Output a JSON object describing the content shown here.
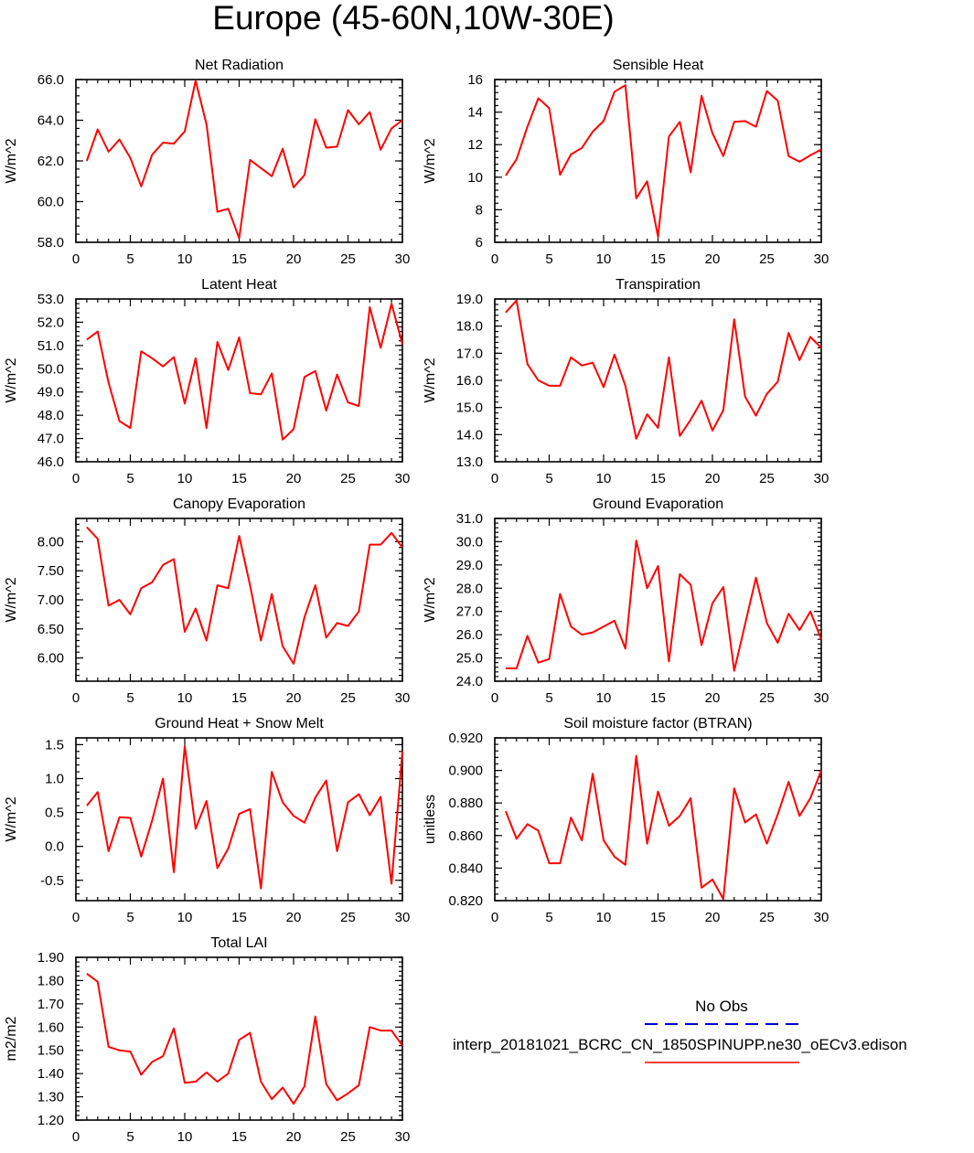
{
  "figure_title": "Europe (45-60N,10W-30E)",
  "legend": {
    "obs_label": "No Obs",
    "obs_color": "#0000cc",
    "model_label": "interp_20181021_BCRC_CN_1850SPINUPP.ne30_oECv3.edison",
    "model_color": "#ff0000"
  },
  "colors": {
    "series": "#ff0000",
    "axis": "#000000"
  },
  "chart_data": [
    {
      "type": "line",
      "title": "Net Radiation",
      "ylabel": "W/m^2",
      "xlim": [
        0,
        30
      ],
      "ylim": [
        58,
        66
      ],
      "xticks": [
        0,
        5,
        10,
        15,
        20,
        25,
        30
      ],
      "yticks": [
        "58.0",
        "60.0",
        "62.0",
        "64.0",
        "66.0"
      ],
      "x": [
        1,
        2,
        3,
        4,
        5,
        6,
        7,
        8,
        9,
        10,
        11,
        12,
        13,
        14,
        15,
        16,
        17,
        18,
        19,
        20,
        21,
        22,
        23,
        24,
        25,
        26,
        27,
        28,
        29,
        30
      ],
      "values": [
        62.0,
        63.55,
        62.45,
        63.05,
        62.15,
        60.75,
        62.3,
        62.9,
        62.85,
        63.45,
        65.95,
        63.8,
        59.5,
        59.65,
        58.2,
        62.05,
        61.65,
        61.25,
        62.6,
        60.7,
        61.3,
        64.05,
        62.65,
        62.7,
        64.5,
        63.8,
        64.4,
        62.55,
        63.6,
        64.0
      ]
    },
    {
      "type": "line",
      "title": "Sensible Heat",
      "ylabel": "W/m^2",
      "xlim": [
        0,
        30
      ],
      "ylim": [
        6,
        16
      ],
      "xticks": [
        0,
        5,
        10,
        15,
        20,
        25,
        30
      ],
      "yticks": [
        "6",
        "8",
        "10",
        "12",
        "14",
        "16"
      ],
      "x": [
        1,
        2,
        3,
        4,
        5,
        6,
        7,
        8,
        9,
        10,
        11,
        12,
        13,
        14,
        15,
        16,
        17,
        18,
        19,
        20,
        21,
        22,
        23,
        24,
        25,
        26,
        27,
        28,
        29,
        30
      ],
      "values": [
        10.1,
        11.1,
        13.1,
        14.85,
        14.25,
        10.15,
        11.4,
        11.8,
        12.8,
        13.45,
        15.25,
        15.65,
        8.7,
        9.75,
        6.35,
        12.5,
        13.4,
        10.3,
        15.0,
        12.7,
        11.3,
        13.4,
        13.45,
        13.1,
        15.3,
        14.7,
        11.3,
        10.95,
        11.35,
        11.7
      ]
    },
    {
      "type": "line",
      "title": "Latent Heat",
      "ylabel": "W/m^2",
      "xlim": [
        0,
        30
      ],
      "ylim": [
        46,
        53
      ],
      "xticks": [
        0,
        5,
        10,
        15,
        20,
        25,
        30
      ],
      "yticks": [
        "46.0",
        "47.0",
        "48.0",
        "49.0",
        "50.0",
        "51.0",
        "52.0",
        "53.0"
      ],
      "x": [
        1,
        2,
        3,
        4,
        5,
        6,
        7,
        8,
        9,
        10,
        11,
        12,
        13,
        14,
        15,
        16,
        17,
        18,
        19,
        20,
        21,
        22,
        23,
        24,
        25,
        26,
        27,
        28,
        29,
        30
      ],
      "values": [
        51.25,
        51.6,
        49.4,
        47.75,
        47.45,
        50.75,
        50.45,
        50.1,
        50.5,
        48.5,
        50.45,
        47.45,
        51.15,
        49.95,
        51.35,
        48.95,
        48.9,
        49.8,
        46.95,
        47.4,
        49.65,
        49.9,
        48.2,
        49.75,
        48.55,
        48.4,
        52.65,
        50.9,
        52.8,
        51.05
      ]
    },
    {
      "type": "line",
      "title": "Transpiration",
      "ylabel": "W/m^2",
      "xlim": [
        0,
        30
      ],
      "ylim": [
        13,
        19
      ],
      "xticks": [
        0,
        5,
        10,
        15,
        20,
        25,
        30
      ],
      "yticks": [
        "13.0",
        "14.0",
        "15.0",
        "16.0",
        "17.0",
        "18.0",
        "19.0"
      ],
      "x": [
        1,
        2,
        3,
        4,
        5,
        6,
        7,
        8,
        9,
        10,
        11,
        12,
        13,
        14,
        15,
        16,
        17,
        18,
        19,
        20,
        21,
        22,
        23,
        24,
        25,
        26,
        27,
        28,
        29,
        30
      ],
      "values": [
        18.5,
        18.95,
        16.6,
        16.0,
        15.8,
        15.8,
        16.85,
        16.55,
        16.65,
        15.75,
        16.95,
        15.8,
        13.85,
        14.75,
        14.25,
        16.85,
        13.95,
        14.55,
        15.25,
        14.15,
        14.9,
        18.25,
        15.4,
        14.7,
        15.5,
        15.95,
        17.75,
        16.75,
        17.6,
        17.2
      ]
    },
    {
      "type": "line",
      "title": "Canopy Evaporation",
      "ylabel": "W/m^2",
      "xlim": [
        0,
        30
      ],
      "ylim": [
        5.6,
        8.4
      ],
      "xticks": [
        0,
        5,
        10,
        15,
        20,
        25,
        30
      ],
      "yticks": [
        "6.00",
        "6.50",
        "7.00",
        "7.50",
        "8.00"
      ],
      "x": [
        1,
        2,
        3,
        4,
        5,
        6,
        7,
        8,
        9,
        10,
        11,
        12,
        13,
        14,
        15,
        16,
        17,
        18,
        19,
        20,
        21,
        22,
        23,
        24,
        25,
        26,
        27,
        28,
        29,
        30
      ],
      "values": [
        8.25,
        8.05,
        6.9,
        7.0,
        6.75,
        7.2,
        7.3,
        7.6,
        7.7,
        6.45,
        6.85,
        6.3,
        7.25,
        7.2,
        8.1,
        7.25,
        6.3,
        7.1,
        6.2,
        5.9,
        6.7,
        7.25,
        6.35,
        6.6,
        6.55,
        6.8,
        7.95,
        7.95,
        8.15,
        7.9
      ]
    },
    {
      "type": "line",
      "title": "Ground Evaporation",
      "ylabel": "W/m^2",
      "xlim": [
        0,
        30
      ],
      "ylim": [
        24,
        31
      ],
      "xticks": [
        0,
        5,
        10,
        15,
        20,
        25,
        30
      ],
      "yticks": [
        "24.0",
        "25.0",
        "26.0",
        "27.0",
        "28.0",
        "29.0",
        "30.0",
        "31.0"
      ],
      "x": [
        1,
        2,
        3,
        4,
        5,
        6,
        7,
        8,
        9,
        10,
        11,
        12,
        13,
        14,
        15,
        16,
        17,
        18,
        19,
        20,
        21,
        22,
        23,
        24,
        25,
        26,
        27,
        28,
        29,
        30
      ],
      "values": [
        24.55,
        24.55,
        25.95,
        24.8,
        24.95,
        27.75,
        26.35,
        26.0,
        26.1,
        26.35,
        26.6,
        25.4,
        30.05,
        28.0,
        28.95,
        24.85,
        28.6,
        28.15,
        25.55,
        27.35,
        28.05,
        24.45,
        26.45,
        28.45,
        26.5,
        25.65,
        26.9,
        26.2,
        27.0,
        25.8
      ]
    },
    {
      "type": "line",
      "title": "Ground Heat + Snow Melt",
      "ylabel": "W/m^2",
      "xlim": [
        0,
        30
      ],
      "ylim": [
        -0.8,
        1.6
      ],
      "xticks": [
        0,
        5,
        10,
        15,
        20,
        25,
        30
      ],
      "yticks": [
        "-0.5",
        "0.0",
        "0.5",
        "1.0",
        "1.5"
      ],
      "x": [
        1,
        2,
        3,
        4,
        5,
        6,
        7,
        8,
        9,
        10,
        11,
        12,
        13,
        14,
        15,
        16,
        17,
        18,
        19,
        20,
        21,
        22,
        23,
        24,
        25,
        26,
        27,
        28,
        29,
        30
      ],
      "values": [
        0.6,
        0.8,
        -0.07,
        0.43,
        0.42,
        -0.15,
        0.38,
        1.0,
        -0.38,
        1.48,
        0.26,
        0.67,
        -0.32,
        -0.03,
        0.48,
        0.55,
        -0.62,
        1.1,
        0.65,
        0.45,
        0.35,
        0.72,
        0.97,
        -0.07,
        0.65,
        0.77,
        0.46,
        0.73,
        -0.55,
        1.4
      ]
    },
    {
      "type": "line",
      "title": "Soil moisture factor (BTRAN)",
      "ylabel": "unitless",
      "xlim": [
        0,
        30
      ],
      "ylim": [
        0.82,
        0.92
      ],
      "xticks": [
        0,
        5,
        10,
        15,
        20,
        25,
        30
      ],
      "yticks": [
        "0.820",
        "0.840",
        "0.860",
        "0.880",
        "0.900",
        "0.920"
      ],
      "x": [
        1,
        2,
        3,
        4,
        5,
        6,
        7,
        8,
        9,
        10,
        11,
        12,
        13,
        14,
        15,
        16,
        17,
        18,
        19,
        20,
        21,
        22,
        23,
        24,
        25,
        26,
        27,
        28,
        29,
        30
      ],
      "values": [
        0.875,
        0.858,
        0.867,
        0.863,
        0.843,
        0.843,
        0.871,
        0.857,
        0.898,
        0.857,
        0.847,
        0.842,
        0.909,
        0.855,
        0.887,
        0.866,
        0.872,
        0.883,
        0.828,
        0.833,
        0.821,
        0.889,
        0.868,
        0.873,
        0.855,
        0.873,
        0.893,
        0.872,
        0.883,
        0.9
      ]
    },
    {
      "type": "line",
      "title": "Total LAI",
      "ylabel": "m2/m2",
      "xlim": [
        0,
        30
      ],
      "ylim": [
        1.2,
        1.9
      ],
      "xticks": [
        0,
        5,
        10,
        15,
        20,
        25,
        30
      ],
      "yticks": [
        "1.20",
        "1.30",
        "1.40",
        "1.50",
        "1.60",
        "1.70",
        "1.80",
        "1.90"
      ],
      "x": [
        1,
        2,
        3,
        4,
        5,
        6,
        7,
        8,
        9,
        10,
        11,
        12,
        13,
        14,
        15,
        16,
        17,
        18,
        19,
        20,
        21,
        22,
        23,
        24,
        25,
        26,
        27,
        28,
        29,
        30
      ],
      "values": [
        1.83,
        1.795,
        1.515,
        1.5,
        1.495,
        1.395,
        1.45,
        1.475,
        1.595,
        1.36,
        1.365,
        1.405,
        1.365,
        1.4,
        1.545,
        1.575,
        1.365,
        1.29,
        1.34,
        1.27,
        1.345,
        1.645,
        1.355,
        1.285,
        1.315,
        1.35,
        1.6,
        1.585,
        1.585,
        1.52
      ]
    }
  ]
}
